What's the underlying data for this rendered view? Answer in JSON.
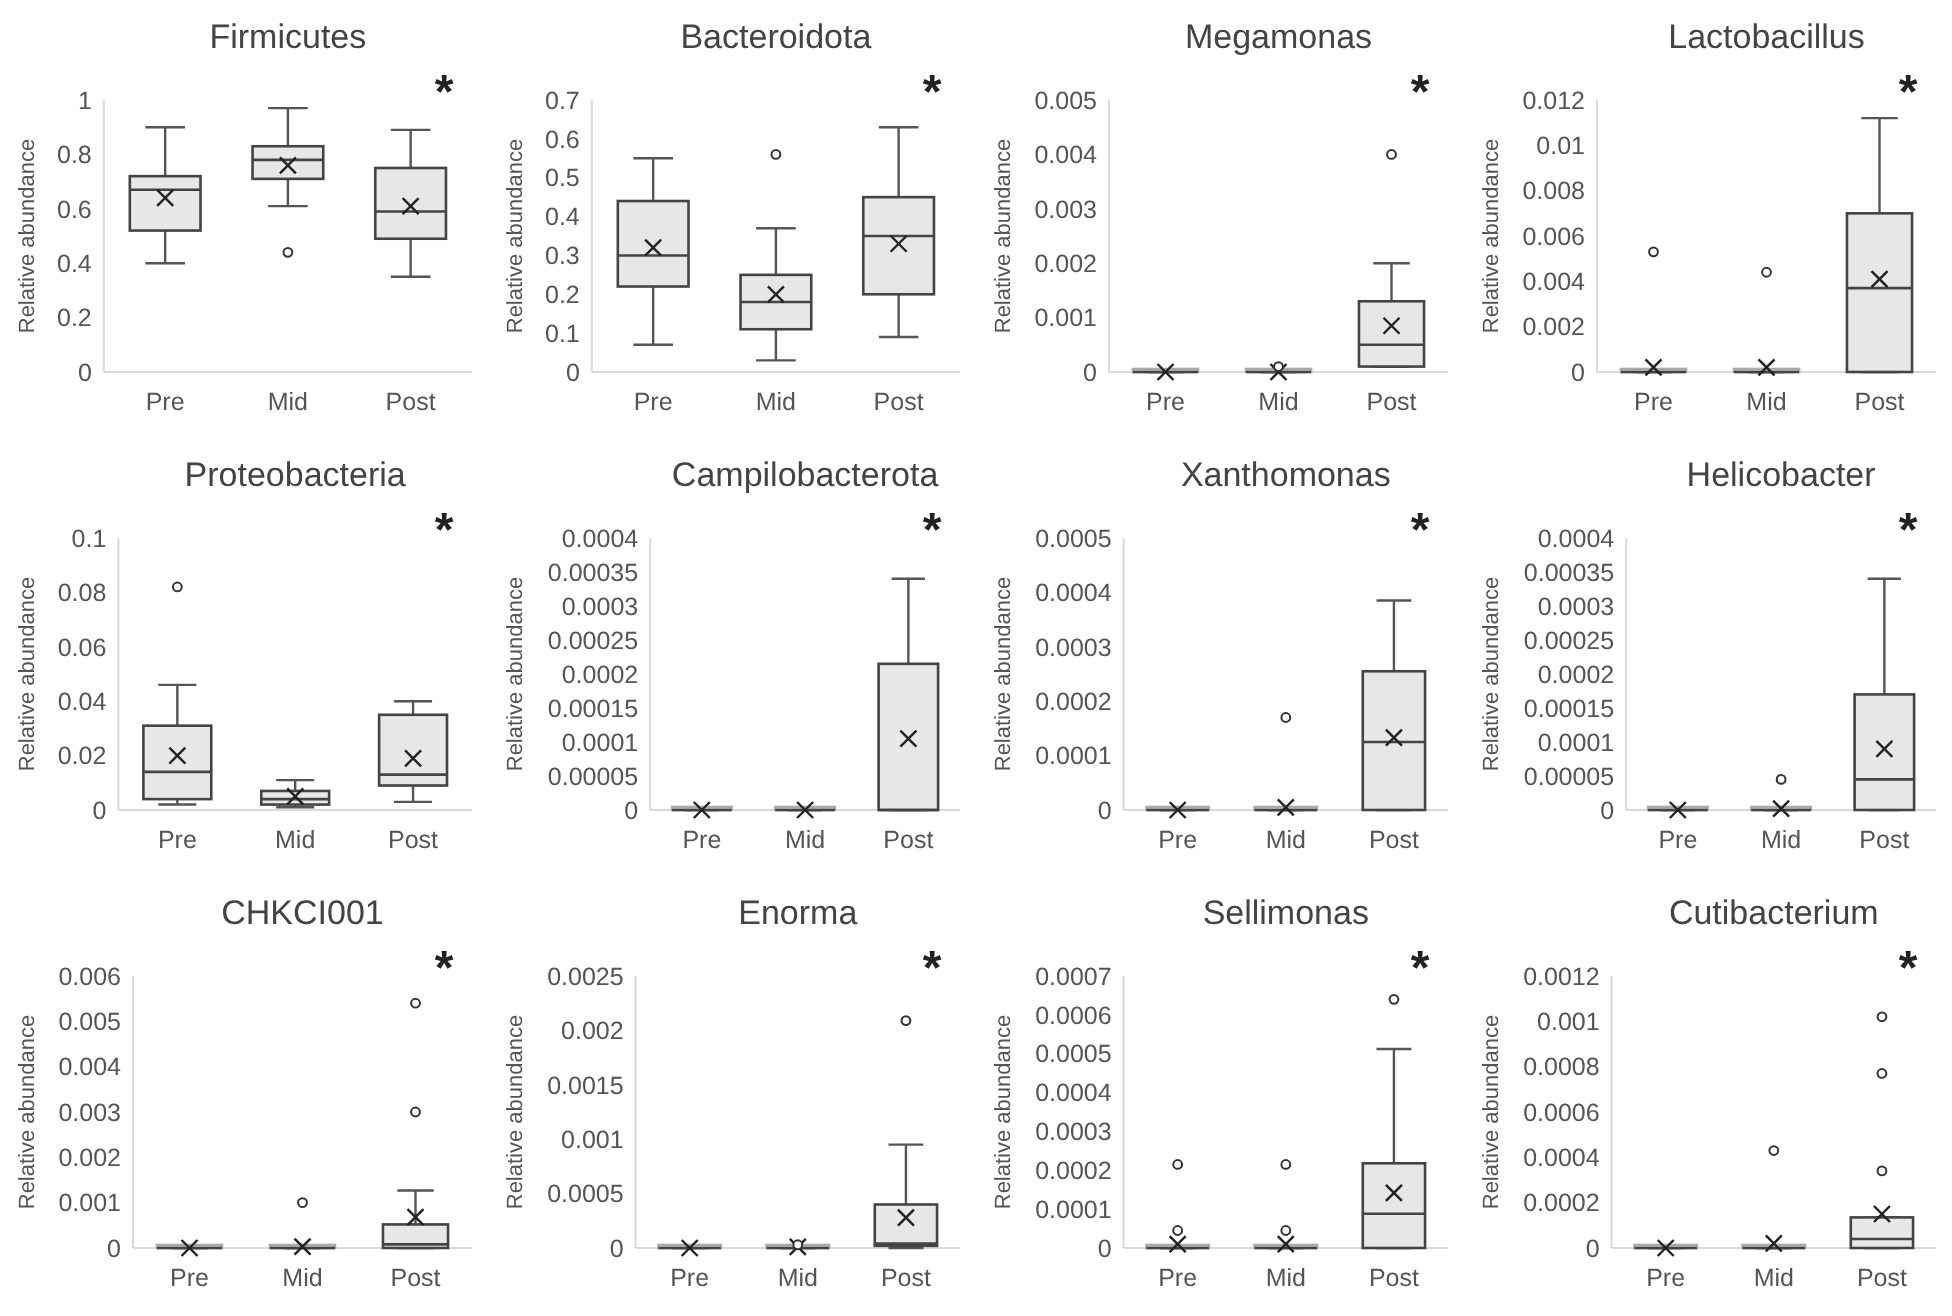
{
  "chart_data": [
    {
      "type": "box",
      "title": "Firmicutes",
      "ylabel": "Relative abundance",
      "categories": [
        "Pre",
        "Mid",
        "Post"
      ],
      "ylim": [
        0,
        1
      ],
      "yticks": [
        0,
        0.2,
        0.4,
        0.6,
        0.8,
        1
      ],
      "boxes": [
        {
          "low": 0.4,
          "q1": 0.52,
          "median": 0.67,
          "q3": 0.72,
          "high": 0.9,
          "mean": 0.64
        },
        {
          "low": 0.61,
          "q1": 0.71,
          "median": 0.78,
          "q3": 0.83,
          "high": 0.97,
          "mean": 0.76,
          "outliers": [
            0.44
          ]
        },
        {
          "low": 0.35,
          "q1": 0.49,
          "median": 0.59,
          "q3": 0.75,
          "high": 0.89,
          "mean": 0.61
        }
      ],
      "annotations": [
        "*"
      ]
    },
    {
      "type": "box",
      "title": "Bacteroidota",
      "ylabel": "Relative abundance",
      "categories": [
        "Pre",
        "Mid",
        "Post"
      ],
      "ylim": [
        0,
        0.7
      ],
      "yticks": [
        0,
        0.1,
        0.2,
        0.3,
        0.4,
        0.5,
        0.6,
        0.7
      ],
      "boxes": [
        {
          "low": 0.07,
          "q1": 0.22,
          "median": 0.3,
          "q3": 0.44,
          "high": 0.55,
          "mean": 0.32
        },
        {
          "low": 0.03,
          "q1": 0.11,
          "median": 0.18,
          "q3": 0.25,
          "high": 0.37,
          "mean": 0.2,
          "outliers": [
            0.56
          ]
        },
        {
          "low": 0.09,
          "q1": 0.2,
          "median": 0.35,
          "q3": 0.45,
          "high": 0.63,
          "mean": 0.33
        }
      ],
      "annotations": [
        "*"
      ]
    },
    {
      "type": "box",
      "title": "Megamonas",
      "ylabel": "Relative abundance",
      "categories": [
        "Pre",
        "Mid",
        "Post"
      ],
      "ylim": [
        0,
        0.005
      ],
      "yticks": [
        0,
        0.001,
        0.002,
        0.003,
        0.004,
        0.005
      ],
      "boxes": [
        {
          "low": 0,
          "q1": 0,
          "median": 0,
          "q3": 0,
          "high": 0,
          "mean": 0
        },
        {
          "low": 0,
          "q1": 0,
          "median": 0,
          "q3": 0,
          "high": 0,
          "mean": 0,
          "outliers": [
            0.0001
          ]
        },
        {
          "low": 0.0001,
          "q1": 0.0001,
          "median": 0.0005,
          "q3": 0.0013,
          "high": 0.002,
          "mean": 0.00085,
          "outliers": [
            0.004
          ]
        }
      ],
      "annotations": [
        "*"
      ]
    },
    {
      "type": "box",
      "title": "Lactobacillus",
      "ylabel": "Relative abundance",
      "categories": [
        "Pre",
        "Mid",
        "Post"
      ],
      "ylim": [
        0,
        0.012
      ],
      "yticks": [
        0,
        0.002,
        0.004,
        0.006,
        0.008,
        0.01,
        0.012
      ],
      "boxes": [
        {
          "low": 0,
          "q1": 0,
          "median": 0,
          "q3": 0,
          "high": 0,
          "mean": 0.0002,
          "outliers": [
            0.0053
          ]
        },
        {
          "low": 0,
          "q1": 0,
          "median": 0,
          "q3": 0,
          "high": 0,
          "mean": 0.0002,
          "outliers": [
            0.0044
          ]
        },
        {
          "low": 0,
          "q1": 0,
          "median": 0.0037,
          "q3": 0.007,
          "high": 0.0112,
          "mean": 0.0041
        }
      ],
      "annotations": [
        "*"
      ]
    },
    {
      "type": "box",
      "title": "Proteobacteria",
      "ylabel": "Relative abundance",
      "categories": [
        "Pre",
        "Mid",
        "Post"
      ],
      "ylim": [
        0,
        0.1
      ],
      "yticks": [
        0,
        0.02,
        0.04,
        0.06,
        0.08,
        0.1
      ],
      "boxes": [
        {
          "low": 0.002,
          "q1": 0.004,
          "median": 0.014,
          "q3": 0.031,
          "high": 0.046,
          "mean": 0.02,
          "outliers": [
            0.082
          ]
        },
        {
          "low": 0.001,
          "q1": 0.002,
          "median": 0.004,
          "q3": 0.007,
          "high": 0.011,
          "mean": 0.005
        },
        {
          "low": 0.003,
          "q1": 0.009,
          "median": 0.013,
          "q3": 0.035,
          "high": 0.04,
          "mean": 0.019
        }
      ],
      "annotations": [
        "*"
      ]
    },
    {
      "type": "box",
      "title": "Campilobacterota",
      "ylabel": "Relative abundance",
      "categories": [
        "Pre",
        "Mid",
        "Post"
      ],
      "ylim": [
        0,
        0.0004
      ],
      "yticks": [
        0,
        {
          "value": 5e-05,
          "label": "0.00005"
        },
        0.0001,
        0.00015,
        0.0002,
        0.00025,
        0.0003,
        0.00035,
        0.0004
      ],
      "boxes": [
        {
          "low": 0,
          "q1": 0,
          "median": 0,
          "q3": 0,
          "high": 0,
          "mean": 0
        },
        {
          "low": 0,
          "q1": 0,
          "median": 0,
          "q3": 0,
          "high": 0,
          "mean": 0
        },
        {
          "low": 0,
          "q1": 0,
          "median": 0,
          "q3": 0.000215,
          "high": 0.00034,
          "mean": 0.000105
        }
      ],
      "annotations": [
        "*"
      ]
    },
    {
      "type": "box",
      "title": "Xanthomonas",
      "ylabel": "Relative abundance",
      "categories": [
        "Pre",
        "Mid",
        "Post"
      ],
      "ylim": [
        0,
        0.0005
      ],
      "yticks": [
        0,
        0.0001,
        0.0002,
        0.0003,
        0.0004,
        0.0005
      ],
      "boxes": [
        {
          "low": 0,
          "q1": 0,
          "median": 0,
          "q3": 0,
          "high": 0,
          "mean": 0
        },
        {
          "low": 0,
          "q1": 0,
          "median": 0,
          "q3": 0,
          "high": 0,
          "mean": 5e-06,
          "outliers": [
            0.00017
          ]
        },
        {
          "low": 0,
          "q1": 0,
          "median": 0.000125,
          "q3": 0.000255,
          "high": 0.000385,
          "mean": 0.000133
        }
      ],
      "annotations": [
        "*"
      ]
    },
    {
      "type": "box",
      "title": "Helicobacter",
      "ylabel": "Relative abundance",
      "categories": [
        "Pre",
        "Mid",
        "Post"
      ],
      "ylim": [
        0,
        0.0004
      ],
      "yticks": [
        0,
        {
          "value": 5e-05,
          "label": "0.00005"
        },
        0.0001,
        0.00015,
        0.0002,
        0.00025,
        0.0003,
        0.00035,
        0.0004
      ],
      "boxes": [
        {
          "low": 0,
          "q1": 0,
          "median": 0,
          "q3": 0,
          "high": 0,
          "mean": 0
        },
        {
          "low": 0,
          "q1": 0,
          "median": 0,
          "q3": 0,
          "high": 0,
          "mean": 2e-06,
          "outliers": [
            4.5e-05
          ]
        },
        {
          "low": 0,
          "q1": 0,
          "median": 4.5e-05,
          "q3": 0.00017,
          "high": 0.00034,
          "mean": 9e-05
        }
      ],
      "annotations": [
        "*"
      ]
    },
    {
      "type": "box",
      "title": "CHKCI001",
      "ylabel": "Relative abundance",
      "categories": [
        "Pre",
        "Mid",
        "Post"
      ],
      "ylim": [
        0,
        0.006
      ],
      "yticks": [
        0,
        0.001,
        0.002,
        0.003,
        0.004,
        0.005,
        0.006
      ],
      "boxes": [
        {
          "low": 0,
          "q1": 0,
          "median": 0,
          "q3": 0,
          "high": 0,
          "mean": 0
        },
        {
          "low": 0,
          "q1": 0,
          "median": 0,
          "q3": 0,
          "high": 0,
          "mean": 3e-05,
          "outliers": [
            0.001
          ]
        },
        {
          "low": 0,
          "q1": 0,
          "median": 8e-05,
          "q3": 0.00052,
          "high": 0.00127,
          "mean": 0.00068,
          "outliers": [
            0.003,
            0.0054
          ]
        }
      ],
      "annotations": [
        "*"
      ]
    },
    {
      "type": "box",
      "title": "Enorma",
      "ylabel": "Relative abundance",
      "categories": [
        "Pre",
        "Mid",
        "Post"
      ],
      "ylim": [
        0,
        0.0025
      ],
      "yticks": [
        0,
        0.0005,
        0.001,
        0.0015,
        0.002,
        0.0025
      ],
      "boxes": [
        {
          "low": 0,
          "q1": 0,
          "median": 0,
          "q3": 0,
          "high": 0,
          "mean": 0
        },
        {
          "low": 0,
          "q1": 0,
          "median": 0,
          "q3": 0,
          "high": 0,
          "mean": 1e-05,
          "outliers": [
            3e-05
          ]
        },
        {
          "low": 0,
          "q1": 2e-05,
          "median": 4e-05,
          "q3": 0.0004,
          "high": 0.00095,
          "mean": 0.00028,
          "outliers": [
            0.00209
          ]
        }
      ],
      "annotations": [
        "*"
      ]
    },
    {
      "type": "box",
      "title": "Sellimonas",
      "ylabel": "Relative abundance",
      "categories": [
        "Pre",
        "Mid",
        "Post"
      ],
      "ylim": [
        0,
        0.0007
      ],
      "yticks": [
        0,
        0.0001,
        0.0002,
        0.0003,
        0.0004,
        0.0005,
        0.0006,
        0.0007
      ],
      "boxes": [
        {
          "low": 0,
          "q1": 0,
          "median": 0,
          "q3": 0,
          "high": 0,
          "mean": 1e-05,
          "outliers": [
            4.5e-05,
            0.000215
          ]
        },
        {
          "low": 0,
          "q1": 0,
          "median": 0,
          "q3": 0,
          "high": 0,
          "mean": 1e-05,
          "outliers": [
            4.5e-05,
            0.000215
          ]
        },
        {
          "low": 0,
          "q1": 0,
          "median": 8.8e-05,
          "q3": 0.000218,
          "high": 0.000512,
          "mean": 0.000142,
          "outliers": [
            0.00064
          ]
        }
      ],
      "annotations": [
        "*"
      ]
    },
    {
      "type": "box",
      "title": "Cutibacterium",
      "ylabel": "Relative abundance",
      "categories": [
        "Pre",
        "Mid",
        "Post"
      ],
      "ylim": [
        0,
        0.0012
      ],
      "yticks": [
        0,
        0.0002,
        0.0004,
        0.0006,
        0.0008,
        0.001,
        0.0012
      ],
      "boxes": [
        {
          "low": 0,
          "q1": 0,
          "median": 0,
          "q3": 0,
          "high": 0,
          "mean": 0
        },
        {
          "low": 0,
          "q1": 0,
          "median": 0,
          "q3": 0,
          "high": 0,
          "mean": 2e-05,
          "outliers": [
            0.00043
          ]
        },
        {
          "low": 0,
          "q1": 0,
          "median": 4e-05,
          "q3": 0.000135,
          "high": 0.000135,
          "mean": 0.00015,
          "outliers": [
            0.00034,
            0.00077,
            0.00102
          ]
        }
      ],
      "annotations": [
        "*"
      ]
    }
  ]
}
